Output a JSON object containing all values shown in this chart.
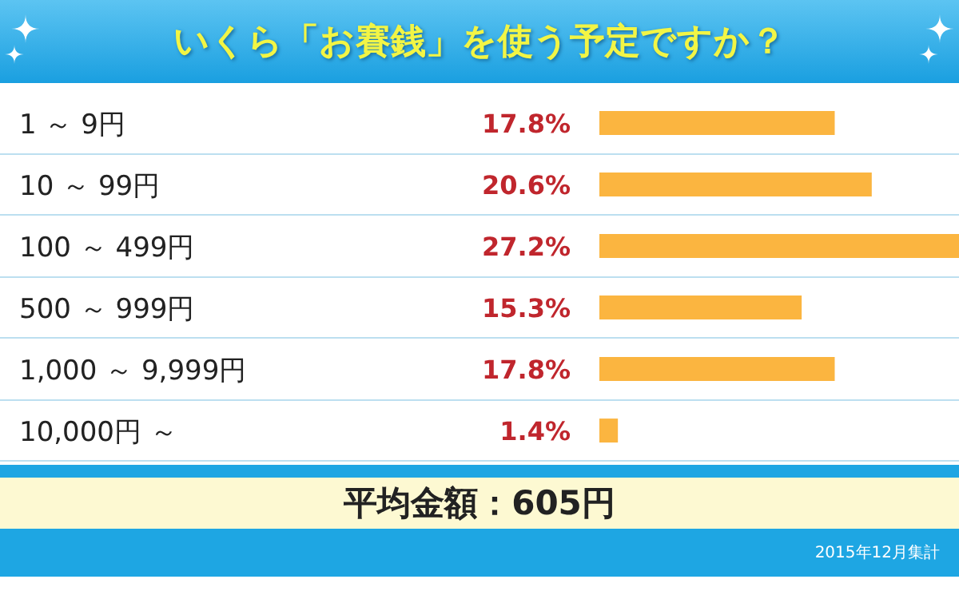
{
  "chart_data": {
    "type": "bar",
    "orientation": "horizontal",
    "title": "いくら「お賽銭」を使う予定ですか？",
    "categories": [
      "1 ～ 9円",
      "10 ～ 99円",
      "100 ～ 499円",
      "500 ～ 999円",
      "1,000 ～ 9,999円",
      "10,000円 ～"
    ],
    "values": [
      17.8,
      20.6,
      27.2,
      15.3,
      17.8,
      1.4
    ],
    "value_labels": [
      "17.8%",
      "20.6%",
      "27.2%",
      "15.3%",
      "17.8%",
      "1.4%"
    ],
    "color": "#fbb540",
    "annotations": [
      "平均金額：605円",
      "2015年12月集計"
    ]
  }
}
